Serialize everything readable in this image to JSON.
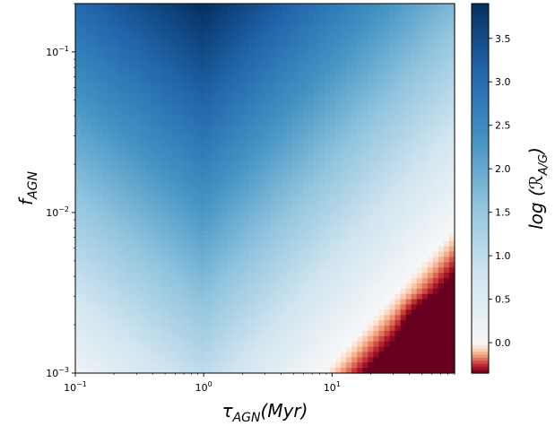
{
  "chart_data": {
    "type": "heatmap",
    "title": "",
    "x": {
      "label": "τ",
      "label_sub": "AGN",
      "label_suffix": "(Myr)",
      "scale": "log",
      "range": [
        0.1,
        90
      ],
      "major_ticks": [
        {
          "value": 0.1,
          "base": "10",
          "exp": "−1"
        },
        {
          "value": 1,
          "base": "10",
          "exp": "0"
        },
        {
          "value": 10,
          "base": "10",
          "exp": "1"
        }
      ]
    },
    "y": {
      "label": "f",
      "label_sub": "AGN",
      "scale": "log",
      "range": [
        0.001,
        0.2
      ],
      "major_ticks": [
        {
          "value": 0.001,
          "base": "10",
          "exp": "−3"
        },
        {
          "value": 0.01,
          "base": "10",
          "exp": "−2"
        },
        {
          "value": 0.1,
          "base": "10",
          "exp": "−1"
        }
      ]
    },
    "colorbar": {
      "label_prefix": "log (",
      "label_symbol": "ℛ",
      "label_sub": "A/G",
      "label_suffix": ")",
      "range": [
        -0.35,
        3.9
      ],
      "ticks": [
        "0.0",
        "0.5",
        "1.0",
        "1.5",
        "2.0",
        "2.5",
        "3.0",
        "3.5"
      ],
      "tick_values": [
        0.0,
        0.5,
        1.0,
        1.5,
        2.0,
        2.5,
        3.0,
        3.5
      ],
      "colormap": "RdBu",
      "colors": {
        "red_end": "#67001f",
        "white_mid": "#f7f7f7",
        "blue_end": "#053061"
      }
    },
    "grid": false,
    "surface_estimate": {
      "description_values": "approximate log R values at sample grid points",
      "tau_values": [
        0.1,
        0.3,
        1,
        3,
        10,
        30,
        90
      ],
      "f_values": [
        0.001,
        0.003,
        0.01,
        0.03,
        0.1,
        0.2
      ],
      "z": [
        [
          0.5,
          0.9,
          1.4,
          0.8,
          0.4,
          0.1,
          -0.3
        ],
        [
          1.0,
          1.5,
          1.9,
          1.4,
          1.0,
          0.6,
          0.2
        ],
        [
          1.6,
          2.1,
          2.5,
          2.0,
          1.6,
          1.2,
          0.8
        ],
        [
          2.3,
          2.8,
          3.1,
          2.7,
          2.2,
          1.8,
          1.4
        ],
        [
          2.9,
          3.4,
          3.8,
          3.3,
          2.9,
          2.5,
          2.1
        ],
        [
          3.1,
          3.6,
          3.9,
          3.5,
          3.1,
          2.7,
          2.3
        ]
      ]
    }
  }
}
